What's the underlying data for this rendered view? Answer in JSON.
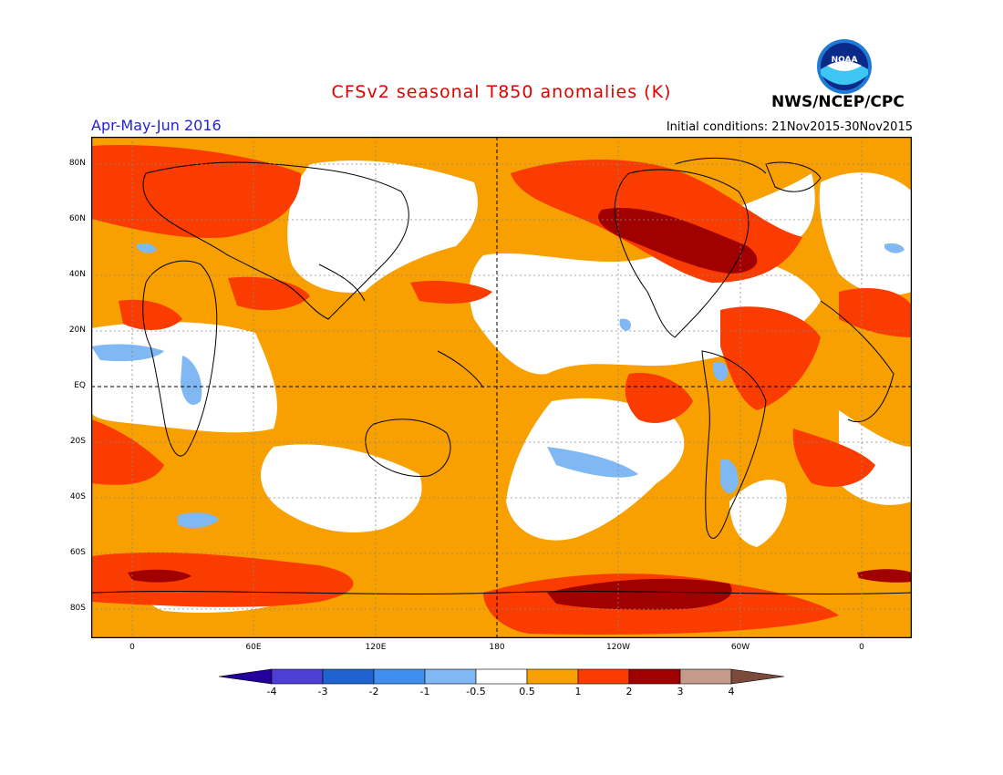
{
  "header": {
    "title": "CFSv2 seasonal T850 anomalies (K)",
    "period": "Apr-May-Jun 2016",
    "initial_conditions": "Initial conditions: 21Nov2015-30Nov2015",
    "agency": "NWS/NCEP/CPC",
    "logo_text": "NOAA"
  },
  "map": {
    "lat_labels": [
      "80N",
      "60N",
      "40N",
      "20N",
      "EQ",
      "20S",
      "40S",
      "60S",
      "80S"
    ],
    "lon_labels": [
      "0",
      "60E",
      "120E",
      "180",
      "120W",
      "60W",
      "0"
    ]
  },
  "colorbar": {
    "labels": [
      "-4",
      "-3",
      "-2",
      "-1",
      "-0.5",
      "0.5",
      "1",
      "2",
      "3",
      "4"
    ],
    "colors": [
      "#24009c",
      "#4d3fd6",
      "#1f63d1",
      "#3f8ef0",
      "#7fb8f2",
      "#ffffff",
      "#f7a000",
      "#fa3c00",
      "#a00000",
      "#c49a8a",
      "#7a4a3a"
    ]
  },
  "colors": {
    "title": "#e00000",
    "period": "#2222dd",
    "ocean_base": "#f7a000"
  }
}
